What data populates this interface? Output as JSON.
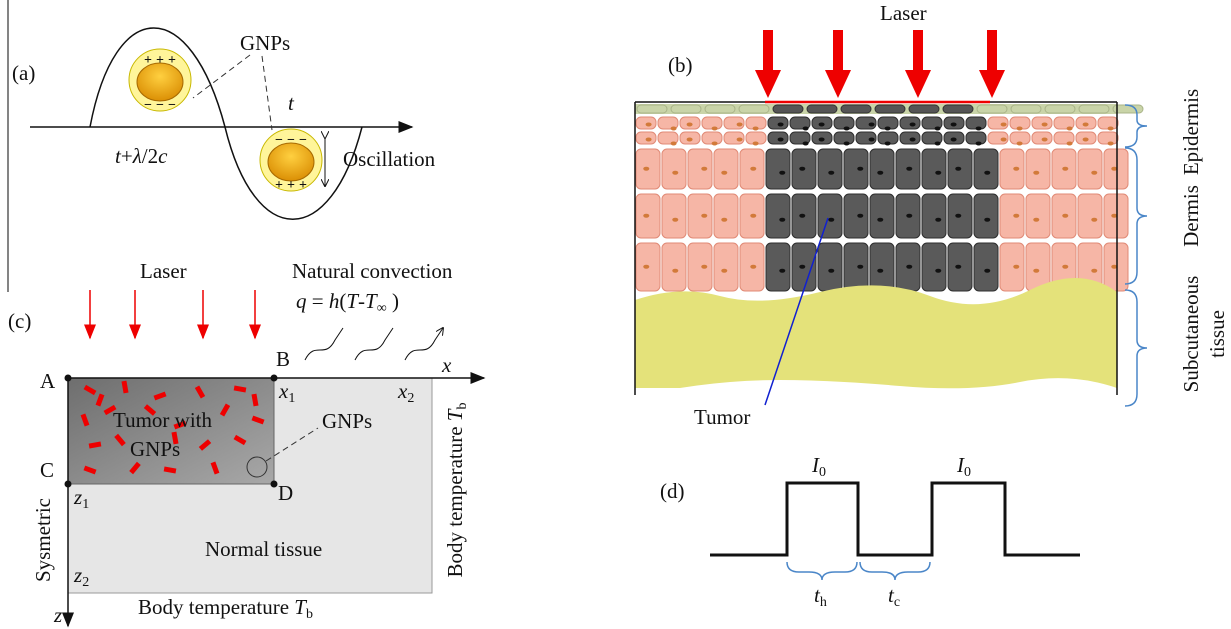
{
  "panel_a": {
    "label": "(a)",
    "gnps": "GNPs",
    "t": "t",
    "t_shift": [
      "t",
      "+",
      "λ",
      "/2",
      "c"
    ],
    "oscillation": "Oscillation",
    "plus": "+",
    "minus": "−"
  },
  "panel_b": {
    "label": "(b)",
    "laser": "Laser",
    "epidermis": "Epidermis",
    "dermis": "Dermis",
    "subcutaneous": [
      "Subcutaneous",
      "tissue"
    ],
    "tumor": "Tumor"
  },
  "panel_c": {
    "label": "(c)",
    "laser": "Laser",
    "convection": "Natural convection",
    "q_label": [
      "q",
      " = ",
      "h",
      "(",
      "T",
      "-",
      "T",
      "∞",
      " )"
    ],
    "points": [
      "A",
      "B",
      "C",
      "D"
    ],
    "x": "x",
    "x1": [
      "x",
      "1"
    ],
    "x2": [
      "x",
      "2"
    ],
    "z": "z",
    "z1": [
      "z",
      "1"
    ],
    "z2": [
      "z",
      "2"
    ],
    "tumor": [
      "Tumor with",
      "GNPs"
    ],
    "gnps": "GNPs",
    "normal": "Normal tissue",
    "symmetric": "Sysmetric",
    "body_temp_bottom": [
      "Body temperature ",
      "T",
      "b"
    ],
    "body_temp_right": [
      "Body temperature ",
      "T",
      "b"
    ]
  },
  "panel_d": {
    "label": "(d)",
    "i0": [
      "I",
      "0"
    ],
    "th": [
      "t",
      "h"
    ],
    "tc": [
      "t",
      "c"
    ]
  }
}
